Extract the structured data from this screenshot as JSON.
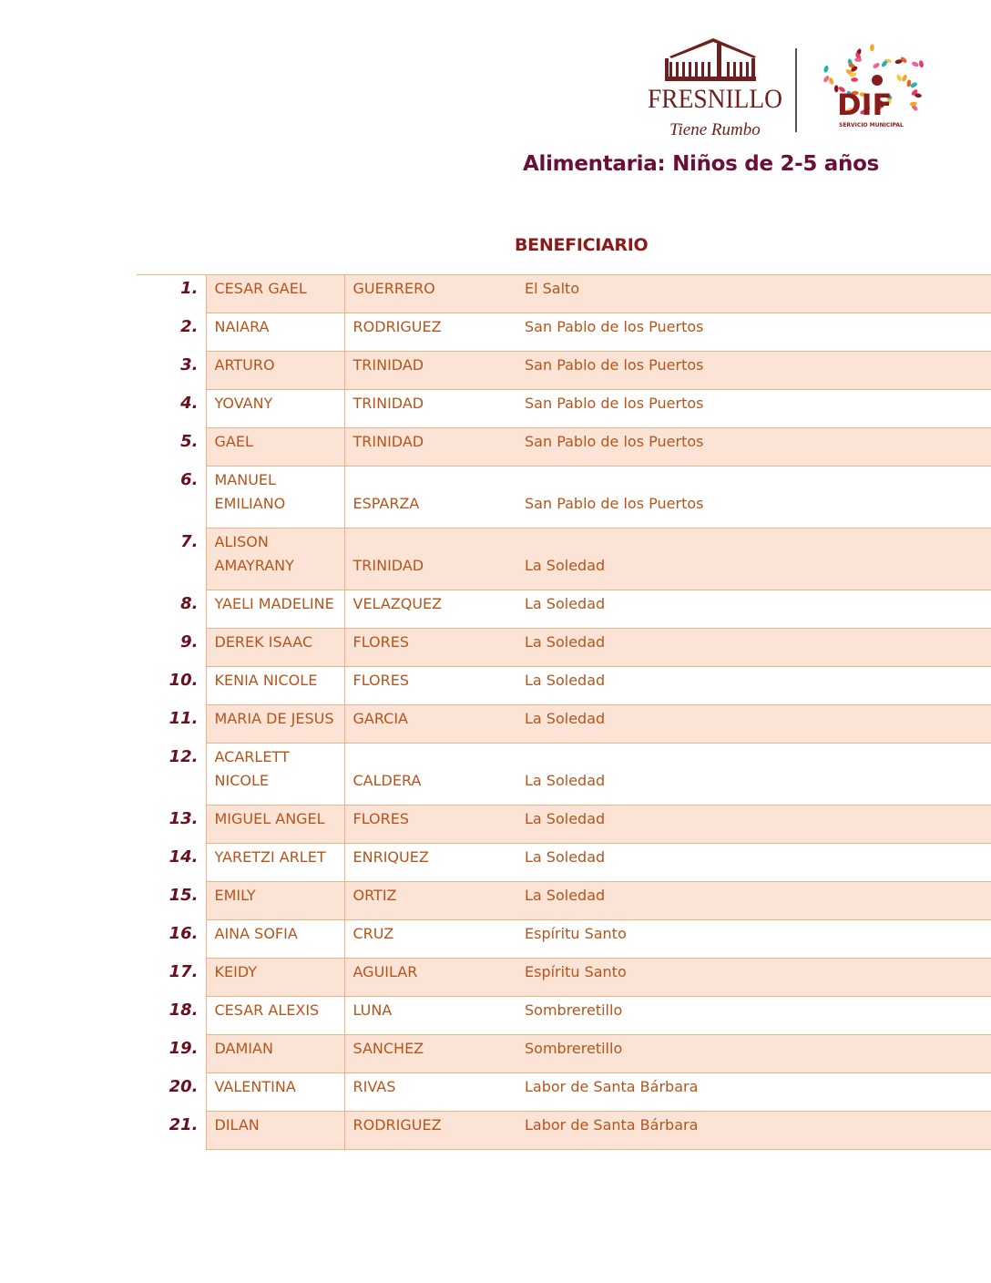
{
  "header": {
    "logo_left": {
      "name": "FRESNILLO",
      "tagline": "Tiene Rumbo"
    },
    "logo_right": {
      "name": "DIF",
      "tagline": "SERVICIO MUNICIPAL"
    },
    "colors": {
      "title": "#6b0f3a",
      "text": "#b5551c",
      "row_fill": "#fbe4d5",
      "border": "#f4b083"
    },
    "title": "Alimentaria: Niños de 2-5 años",
    "subtitle": "BENEFICIARIO"
  },
  "rows": [
    {
      "n": "1.",
      "first": "CESAR GAEL",
      "last": "GUERRERO",
      "place": "El Salto"
    },
    {
      "n": "2.",
      "first": "NAIARA",
      "last": "RODRIGUEZ",
      "place": "San Pablo de los Puertos"
    },
    {
      "n": "3.",
      "first": "ARTURO",
      "last": "TRINIDAD",
      "place": "San Pablo de los Puertos"
    },
    {
      "n": "4.",
      "first": "YOVANY",
      "last": "TRINIDAD",
      "place": "San Pablo de los Puertos"
    },
    {
      "n": "5.",
      "first": "GAEL",
      "last": "TRINIDAD",
      "place": "San Pablo de los Puertos"
    },
    {
      "n": "6.",
      "first": "MANUEL EMILIANO",
      "last": "ESPARZA",
      "place": "San Pablo de los Puertos"
    },
    {
      "n": "7.",
      "first": "ALISON AMAYRANY",
      "last": "TRINIDAD",
      "place": "La Soledad"
    },
    {
      "n": "8.",
      "first": "YAELI MADELINE",
      "last": "VELAZQUEZ",
      "place": "La Soledad"
    },
    {
      "n": "9.",
      "first": "DEREK ISAAC",
      "last": "FLORES",
      "place": "La Soledad"
    },
    {
      "n": "10.",
      "first": "KENIA NICOLE",
      "last": "FLORES",
      "place": "La Soledad"
    },
    {
      "n": "11.",
      "first": "MARIA DE JESUS",
      "last": "GARCIA",
      "place": "La Soledad"
    },
    {
      "n": "12.",
      "first": "ACARLETT NICOLE",
      "last": "CALDERA",
      "place": "La Soledad"
    },
    {
      "n": "13.",
      "first": "MIGUEL ANGEL",
      "last": "FLORES",
      "place": "La Soledad"
    },
    {
      "n": "14.",
      "first": "YARETZI ARLET",
      "last": "ENRIQUEZ",
      "place": "La Soledad"
    },
    {
      "n": "15.",
      "first": "EMILY",
      "last": "ORTIZ",
      "place": "La Soledad"
    },
    {
      "n": "16.",
      "first": "AINA SOFIA",
      "last": "CRUZ",
      "place": "Espíritu Santo"
    },
    {
      "n": "17.",
      "first": "KEIDY",
      "last": "AGUILAR",
      "place": "Espíritu Santo"
    },
    {
      "n": "18.",
      "first": "CESAR ALEXIS",
      "last": "LUNA",
      "place": "Sombreretillo"
    },
    {
      "n": "19.",
      "first": "DAMIAN",
      "last": "SANCHEZ",
      "place": "Sombreretillo"
    },
    {
      "n": "20.",
      "first": "VALENTINA",
      "last": "RIVAS",
      "place": "Labor de Santa Bárbara"
    },
    {
      "n": "21.",
      "first": "DILAN",
      "last": "RODRIGUEZ",
      "place": "Labor de Santa Bárbara"
    }
  ]
}
